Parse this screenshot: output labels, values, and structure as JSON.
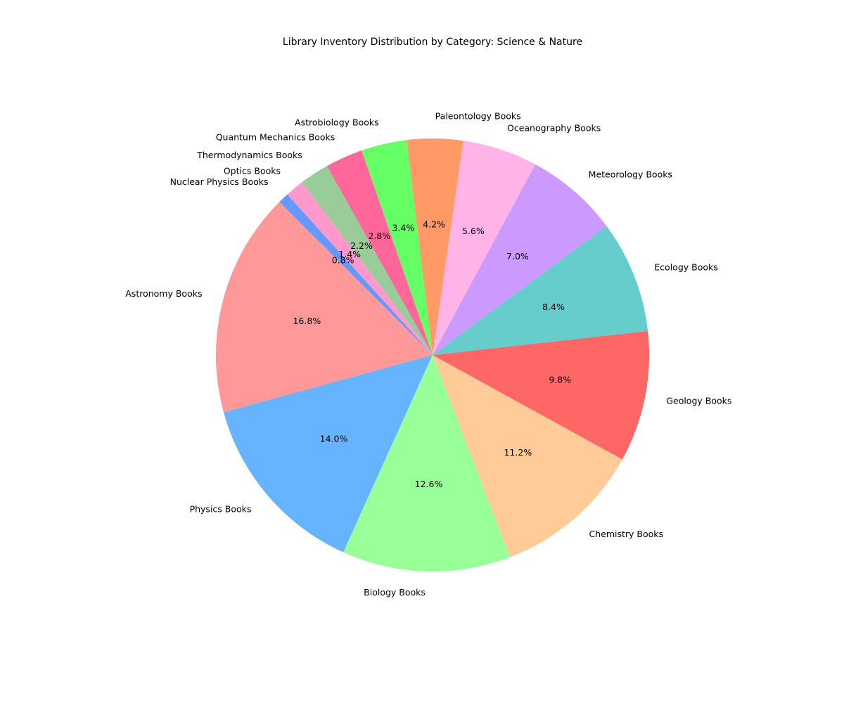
{
  "chart_data": {
    "type": "pie",
    "title": "Library Inventory Distribution by Category: Science & Nature",
    "start_angle_deg": 135,
    "direction": "counterclockwise",
    "slices": [
      {
        "label": "Astronomy Books",
        "value": 16.8,
        "pct_label": "16.8%",
        "color": "#ff9999"
      },
      {
        "label": "Physics Books",
        "value": 14.0,
        "pct_label": "14.0%",
        "color": "#66b3ff"
      },
      {
        "label": "Biology Books",
        "value": 12.6,
        "pct_label": "12.6%",
        "color": "#99ff99"
      },
      {
        "label": "Chemistry Books",
        "value": 11.2,
        "pct_label": "11.2%",
        "color": "#ffcc99"
      },
      {
        "label": "Geology Books",
        "value": 9.8,
        "pct_label": "9.8%",
        "color": "#ff6666"
      },
      {
        "label": "Ecology Books",
        "value": 8.4,
        "pct_label": "8.4%",
        "color": "#66cccc"
      },
      {
        "label": "Meteorology Books",
        "value": 7.0,
        "pct_label": "7.0%",
        "color": "#cc99ff"
      },
      {
        "label": "Oceanography Books",
        "value": 5.6,
        "pct_label": "5.6%",
        "color": "#ffb3e6"
      },
      {
        "label": "Paleontology Books",
        "value": 4.2,
        "pct_label": "4.2%",
        "color": "#ff9966"
      },
      {
        "label": "Astrobiology Books",
        "value": 3.4,
        "pct_label": "3.4%",
        "color": "#66ff66"
      },
      {
        "label": "Quantum Mechanics Books",
        "value": 2.8,
        "pct_label": "2.8%",
        "color": "#ff6699"
      },
      {
        "label": "Thermodynamics Books",
        "value": 2.2,
        "pct_label": "2.2%",
        "color": "#99cc99"
      },
      {
        "label": "Optics Books",
        "value": 1.4,
        "pct_label": "1.4%",
        "color": "#ff99cc"
      },
      {
        "label": "Nuclear Physics Books",
        "value": 0.8,
        "pct_label": "0.8%",
        "color": "#6699ff"
      }
    ]
  }
}
